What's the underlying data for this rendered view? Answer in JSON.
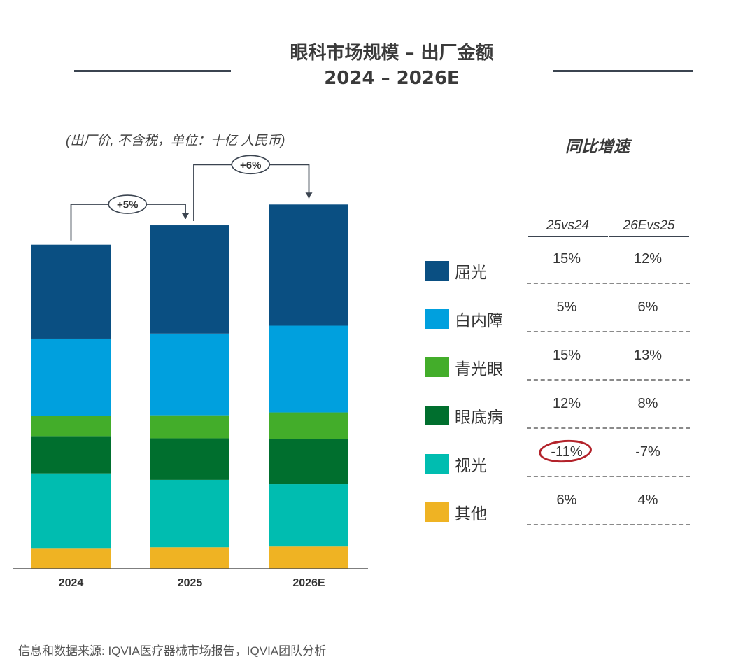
{
  "title": {
    "line1": "眼科市场规模 – 出厂金额",
    "line2": "2024 – 2026E"
  },
  "unit_note": "(出厂价, 不含税，单位：十亿 人民币)",
  "yoy_title": "同比增速",
  "column_headers": [
    "25vs24",
    "26Evs25"
  ],
  "growth_arrows": [
    {
      "from": "2024",
      "to": "2025",
      "label": "+5%"
    },
    {
      "from": "2025",
      "to": "2026E",
      "label": "+6%"
    }
  ],
  "segments": [
    {
      "name": "屈光",
      "color": "#0a4f82",
      "g_25vs24": "15%",
      "g_26vs25": "12%"
    },
    {
      "name": "白内障",
      "color": "#00a0de",
      "g_25vs24": "5%",
      "g_26vs25": "6%"
    },
    {
      "name": "青光眼",
      "color": "#43ad2a",
      "g_25vs24": "15%",
      "g_26vs25": "13%"
    },
    {
      "name": "眼底病",
      "color": "#006f2e",
      "g_25vs24": "12%",
      "g_26vs25": "8%"
    },
    {
      "name": "视光",
      "color": "#00bdb0",
      "g_25vs24": "-11%",
      "g_26vs25": "-7%"
    },
    {
      "name": "其他",
      "color": "#efb323",
      "g_25vs24": "6%",
      "g_26vs25": "4%"
    }
  ],
  "highlight": {
    "segment": "视光",
    "column": "25vs24",
    "color": "#b3222a"
  },
  "chart_data": {
    "type": "bar",
    "stacked": true,
    "categories": [
      "2024",
      "2025",
      "2026E"
    ],
    "series": [
      {
        "name": "其他",
        "values": [
          2.8,
          3.0,
          3.1
        ]
      },
      {
        "name": "视光",
        "values": [
          10.5,
          9.4,
          8.7
        ]
      },
      {
        "name": "眼底病",
        "values": [
          5.2,
          5.8,
          6.3
        ]
      },
      {
        "name": "青光眼",
        "values": [
          2.8,
          3.2,
          3.7
        ]
      },
      {
        "name": "白内障",
        "values": [
          10.8,
          11.4,
          12.1
        ]
      },
      {
        "name": "屈光",
        "values": [
          13.1,
          15.1,
          16.9
        ]
      }
    ],
    "title": "眼科市场规模 – 出厂金额",
    "ylabel": "",
    "xlabel": "",
    "grid": false
  },
  "source": "信息和数据来源: IQVIA医疗器械市场报告，IQVIA团队分析"
}
